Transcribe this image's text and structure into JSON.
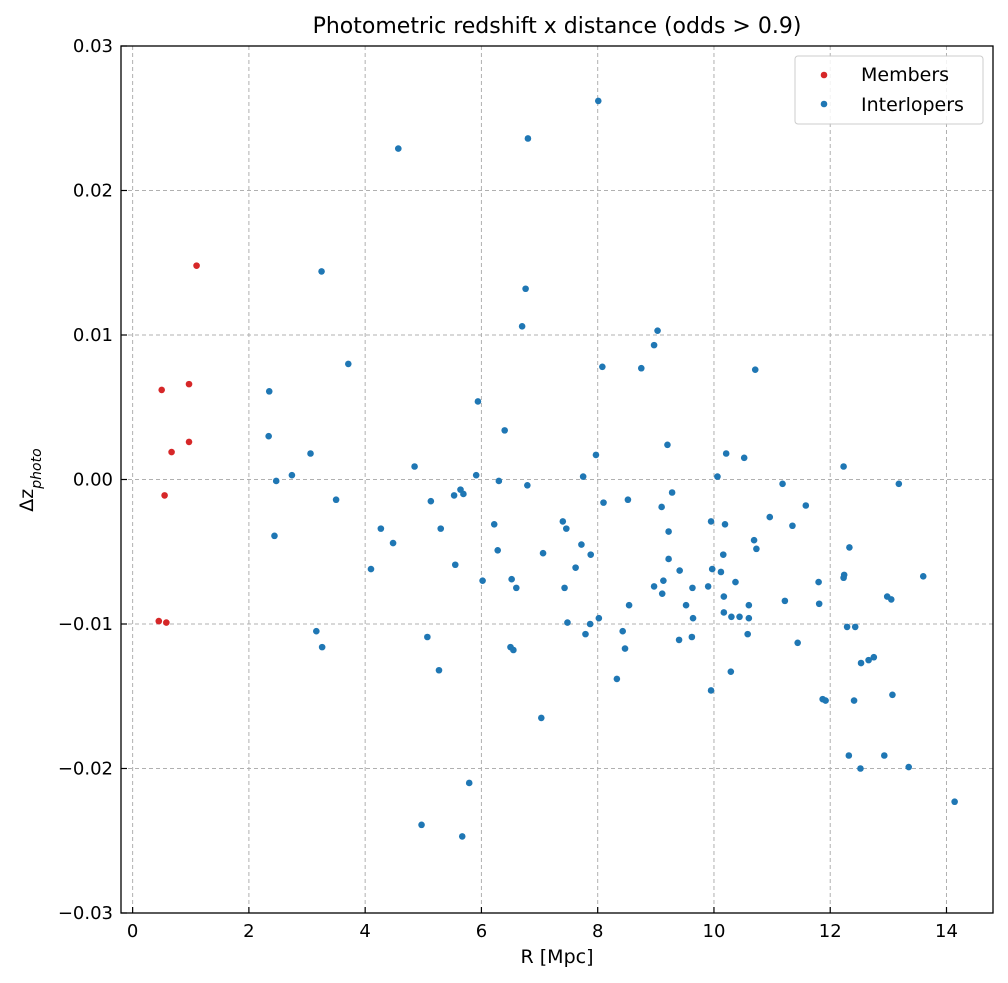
{
  "chart_data": {
    "type": "scatter",
    "title": "Photometric redshift x distance (odds > 0.9)",
    "xlabel": "R [Mpc]",
    "ylabel_main": "Δz",
    "ylabel_sub": "photo",
    "xlim": [
      -0.2,
      14.8
    ],
    "ylim": [
      -0.03,
      0.03
    ],
    "xticks": [
      0,
      2,
      4,
      6,
      8,
      10,
      12,
      14
    ],
    "xtick_labels": [
      "0",
      "2",
      "4",
      "6",
      "8",
      "10",
      "12",
      "14"
    ],
    "yticks": [
      -0.03,
      -0.02,
      -0.01,
      0.0,
      0.01,
      0.02,
      0.03
    ],
    "ytick_labels": [
      "−0.03",
      "−0.02",
      "−0.01",
      "0.00",
      "0.01",
      "0.02",
      "0.03"
    ],
    "grid": true,
    "legend_position": "top-right",
    "series": [
      {
        "name": "Members",
        "color": "#d62728",
        "points": [
          [
            1.1,
            0.0148
          ],
          [
            0.5,
            0.0062
          ],
          [
            0.97,
            0.0066
          ],
          [
            0.97,
            0.0026
          ],
          [
            0.67,
            0.0019
          ],
          [
            0.55,
            -0.0011
          ],
          [
            0.45,
            -0.0098
          ],
          [
            0.58,
            -0.0099
          ]
        ]
      },
      {
        "name": "Interlopers",
        "color": "#1f77b4",
        "points": [
          [
            8.01,
            0.0262
          ],
          [
            6.8,
            0.0236
          ],
          [
            4.57,
            0.0229
          ],
          [
            3.25,
            0.0144
          ],
          [
            6.76,
            0.0132
          ],
          [
            6.7,
            0.0106
          ],
          [
            9.03,
            0.0103
          ],
          [
            8.97,
            0.0093
          ],
          [
            3.71,
            0.008
          ],
          [
            8.08,
            0.0078
          ],
          [
            8.75,
            0.0077
          ],
          [
            10.71,
            0.0076
          ],
          [
            2.35,
            0.0061
          ],
          [
            5.94,
            0.0054
          ],
          [
            6.4,
            0.0034
          ],
          [
            2.34,
            0.003
          ],
          [
            9.2,
            0.0024
          ],
          [
            10.21,
            0.0018
          ],
          [
            3.06,
            0.0018
          ],
          [
            7.97,
            0.0017
          ],
          [
            10.52,
            0.0015
          ],
          [
            4.85,
            0.0009
          ],
          [
            12.23,
            0.0009
          ],
          [
            2.74,
            0.0003
          ],
          [
            5.91,
            0.0003
          ],
          [
            10.06,
            0.0002
          ],
          [
            7.75,
            0.0002
          ],
          [
            2.47,
            -0.0001
          ],
          [
            6.3,
            -0.0001
          ],
          [
            11.18,
            -0.0003
          ],
          [
            13.18,
            -0.0003
          ],
          [
            6.79,
            -0.0004
          ],
          [
            5.64,
            -0.0007
          ],
          [
            5.69,
            -0.001
          ],
          [
            9.28,
            -0.0009
          ],
          [
            5.53,
            -0.0011
          ],
          [
            3.5,
            -0.0014
          ],
          [
            8.52,
            -0.0014
          ],
          [
            5.13,
            -0.0015
          ],
          [
            8.1,
            -0.0016
          ],
          [
            9.1,
            -0.0019
          ],
          [
            11.58,
            -0.0018
          ],
          [
            10.96,
            -0.0026
          ],
          [
            9.95,
            -0.0029
          ],
          [
            7.4,
            -0.0029
          ],
          [
            6.22,
            -0.0031
          ],
          [
            10.19,
            -0.0031
          ],
          [
            11.35,
            -0.0032
          ],
          [
            4.27,
            -0.0034
          ],
          [
            5.3,
            -0.0034
          ],
          [
            7.46,
            -0.0034
          ],
          [
            9.22,
            -0.0036
          ],
          [
            2.44,
            -0.0039
          ],
          [
            10.69,
            -0.0042
          ],
          [
            4.48,
            -0.0044
          ],
          [
            7.72,
            -0.0045
          ],
          [
            10.73,
            -0.0048
          ],
          [
            12.33,
            -0.0047
          ],
          [
            6.28,
            -0.0049
          ],
          [
            7.06,
            -0.0051
          ],
          [
            7.88,
            -0.0052
          ],
          [
            10.16,
            -0.0052
          ],
          [
            9.22,
            -0.0055
          ],
          [
            5.55,
            -0.0059
          ],
          [
            7.62,
            -0.0061
          ],
          [
            4.1,
            -0.0062
          ],
          [
            9.97,
            -0.0062
          ],
          [
            9.41,
            -0.0063
          ],
          [
            10.12,
            -0.0064
          ],
          [
            12.24,
            -0.0066
          ],
          [
            12.23,
            -0.0068
          ],
          [
            13.6,
            -0.0067
          ],
          [
            6.52,
            -0.0069
          ],
          [
            6.02,
            -0.007
          ],
          [
            9.13,
            -0.007
          ],
          [
            10.37,
            -0.0071
          ],
          [
            11.8,
            -0.0071
          ],
          [
            8.97,
            -0.0074
          ],
          [
            9.9,
            -0.0074
          ],
          [
            6.6,
            -0.0075
          ],
          [
            7.43,
            -0.0075
          ],
          [
            9.63,
            -0.0075
          ],
          [
            9.11,
            -0.0079
          ],
          [
            10.17,
            -0.0081
          ],
          [
            12.98,
            -0.0081
          ],
          [
            13.05,
            -0.0083
          ],
          [
            11.22,
            -0.0084
          ],
          [
            11.81,
            -0.0086
          ],
          [
            9.52,
            -0.0087
          ],
          [
            8.54,
            -0.0087
          ],
          [
            10.6,
            -0.0087
          ],
          [
            10.17,
            -0.0092
          ],
          [
            10.3,
            -0.0095
          ],
          [
            10.44,
            -0.0095
          ],
          [
            10.6,
            -0.0096
          ],
          [
            9.64,
            -0.0096
          ],
          [
            8.02,
            -0.0096
          ],
          [
            7.87,
            -0.01
          ],
          [
            7.48,
            -0.0099
          ],
          [
            12.29,
            -0.0102
          ],
          [
            12.43,
            -0.0102
          ],
          [
            8.43,
            -0.0105
          ],
          [
            3.16,
            -0.0105
          ],
          [
            7.79,
            -0.0107
          ],
          [
            10.58,
            -0.0107
          ],
          [
            5.07,
            -0.0109
          ],
          [
            9.62,
            -0.0109
          ],
          [
            9.4,
            -0.0111
          ],
          [
            11.44,
            -0.0113
          ],
          [
            3.26,
            -0.0116
          ],
          [
            6.5,
            -0.0116
          ],
          [
            8.47,
            -0.0117
          ],
          [
            6.55,
            -0.0118
          ],
          [
            12.75,
            -0.0123
          ],
          [
            12.66,
            -0.0125
          ],
          [
            12.53,
            -0.0127
          ],
          [
            5.27,
            -0.0132
          ],
          [
            10.29,
            -0.0133
          ],
          [
            8.33,
            -0.0138
          ],
          [
            9.95,
            -0.0146
          ],
          [
            13.07,
            -0.0149
          ],
          [
            11.87,
            -0.0152
          ],
          [
            11.92,
            -0.0153
          ],
          [
            12.41,
            -0.0153
          ],
          [
            7.03,
            -0.0165
          ],
          [
            12.32,
            -0.0191
          ],
          [
            12.93,
            -0.0191
          ],
          [
            13.35,
            -0.0199
          ],
          [
            12.52,
            -0.02
          ],
          [
            5.79,
            -0.021
          ],
          [
            14.14,
            -0.0223
          ],
          [
            4.97,
            -0.0239
          ],
          [
            5.67,
            -0.0247
          ]
        ]
      }
    ]
  }
}
